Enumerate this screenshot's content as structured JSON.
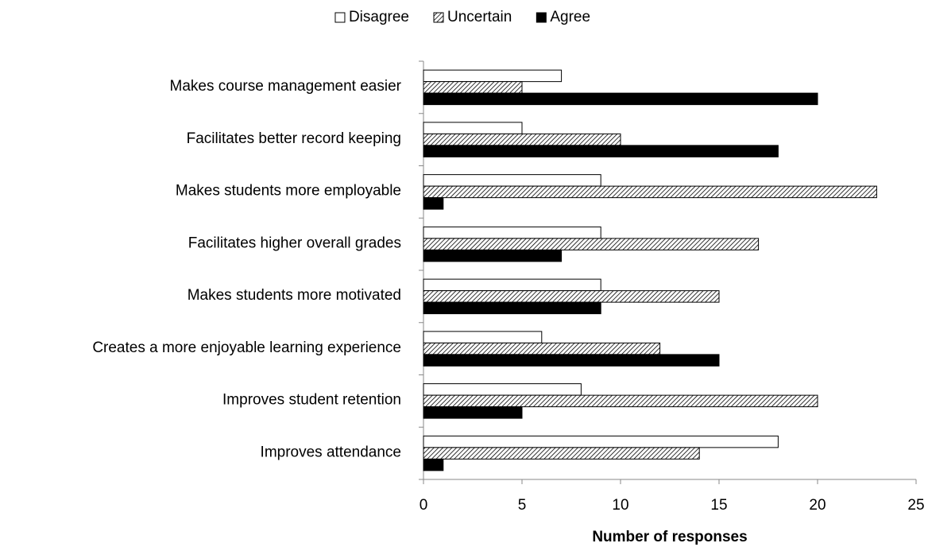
{
  "chart_data": {
    "type": "barh",
    "categories": [
      "Makes course management easier",
      "Facilitates better record keeping",
      "Makes students more employable",
      "Facilitates higher overall grades",
      "Makes students more motivated",
      "Creates a more enjoyable learning experience",
      "Improves student retention",
      "Improves attendance"
    ],
    "series": [
      {
        "name": "Disagree",
        "color": "#ffffff",
        "values": [
          7,
          5,
          9,
          9,
          9,
          6,
          8,
          18
        ]
      },
      {
        "name": "Uncertain",
        "color": "#000000",
        "pattern": "hatch",
        "values": [
          5,
          10,
          23,
          17,
          15,
          12,
          20,
          14
        ]
      },
      {
        "name": "Agree",
        "color": "#000000",
        "values": [
          20,
          18,
          1,
          7,
          9,
          15,
          5,
          1
        ]
      }
    ],
    "xlim": [
      0,
      25
    ],
    "xticks": [
      0,
      5,
      10,
      15,
      20,
      25
    ],
    "xlabel": "Number of responses",
    "legend": "top"
  }
}
